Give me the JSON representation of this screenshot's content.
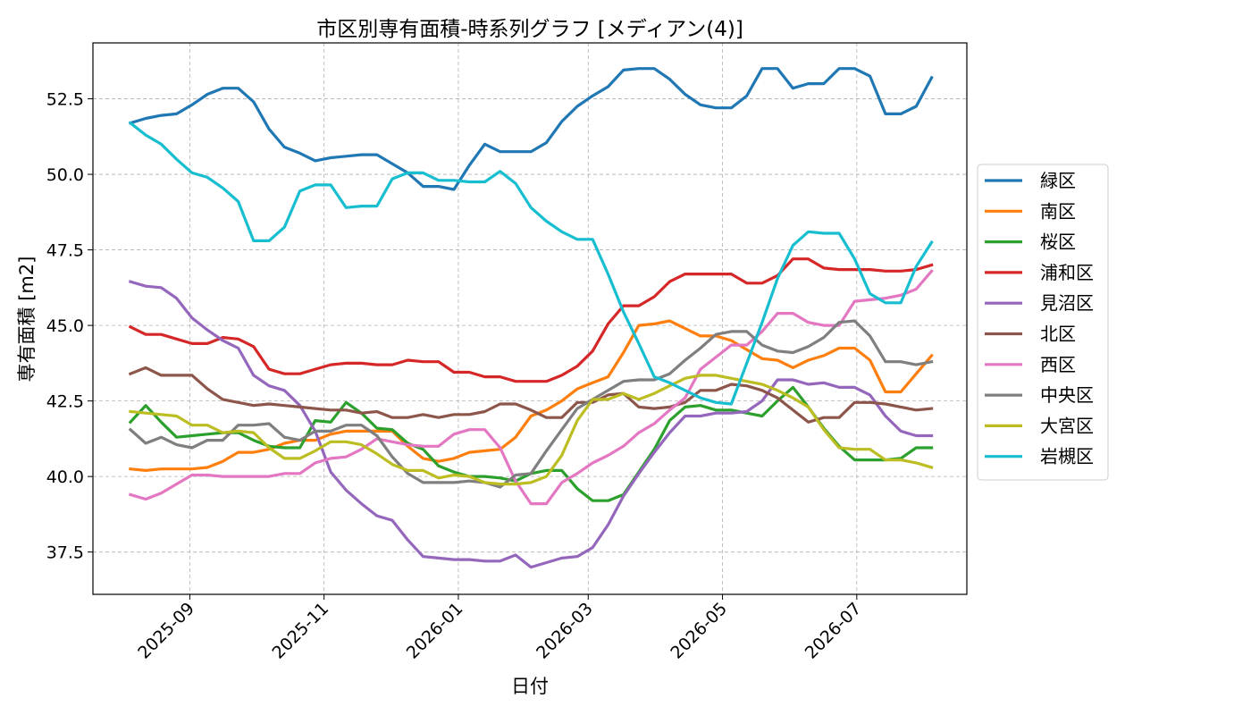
{
  "chart_data": {
    "type": "line",
    "title": "市区別専有面積-時系列グラフ [メディアン(4)]",
    "xlabel": "日付",
    "ylabel": "専有面積 [m2]",
    "xlim": [
      "2025-07-19",
      "2026-08-20"
    ],
    "ylim": [
      36.1,
      54.35
    ],
    "x_ticks": [
      "2025-09-01",
      "2025-11-01",
      "2026-01-01",
      "2026-03-01",
      "2026-05-01",
      "2026-07-01"
    ],
    "x_tick_labels": [
      "2025-09",
      "2025-11",
      "2026-01",
      "2026-03",
      "2026-05",
      "2026-07"
    ],
    "y_ticks": [
      37.5,
      40.0,
      42.5,
      45.0,
      47.5,
      50.0,
      52.5
    ],
    "y_tick_labels": [
      "37.5",
      "40.0",
      "42.5",
      "45.0",
      "47.5",
      "50.0",
      "52.5"
    ],
    "grid": true,
    "legend_position": "right-outside",
    "x": [
      "2025-08-05",
      "2025-08-12",
      "2025-08-19",
      "2025-08-26",
      "2025-09-02",
      "2025-09-09",
      "2025-09-16",
      "2025-09-23",
      "2025-09-30",
      "2025-10-07",
      "2025-10-14",
      "2025-10-21",
      "2025-10-28",
      "2025-11-04",
      "2025-11-11",
      "2025-11-18",
      "2025-11-25",
      "2025-12-02",
      "2025-12-09",
      "2025-12-16",
      "2025-12-23",
      "2025-12-30",
      "2026-01-06",
      "2026-01-13",
      "2026-01-20",
      "2026-01-27",
      "2026-02-03",
      "2026-02-10",
      "2026-02-17",
      "2026-02-24",
      "2026-03-03",
      "2026-03-10",
      "2026-03-17",
      "2026-03-24",
      "2026-03-31",
      "2026-04-07",
      "2026-04-14",
      "2026-04-21",
      "2026-04-28",
      "2026-05-05",
      "2026-05-12",
      "2026-05-19",
      "2026-05-26",
      "2026-06-02",
      "2026-06-09",
      "2026-06-16",
      "2026-06-23",
      "2026-06-30",
      "2026-07-07",
      "2026-07-14",
      "2026-07-21",
      "2026-07-28",
      "2026-08-04"
    ],
    "series": [
      {
        "name": "緑区",
        "color": "#1f77b4",
        "values": [
          51.7,
          51.85,
          51.95,
          52.0,
          52.3,
          52.65,
          52.85,
          52.85,
          52.4,
          51.5,
          50.9,
          50.7,
          50.45,
          50.55,
          50.6,
          50.65,
          50.65,
          50.35,
          50.05,
          49.6,
          49.6,
          49.5,
          50.3,
          51.0,
          50.75,
          50.75,
          50.75,
          51.05,
          51.75,
          52.25,
          52.6,
          52.9,
          53.45,
          53.5,
          53.5,
          53.15,
          52.65,
          52.3,
          52.2,
          52.2,
          52.6,
          53.5,
          53.5,
          52.85,
          53.0,
          53.0,
          53.5,
          53.5,
          53.25,
          52.0,
          52.0,
          52.25,
          53.2
        ]
      },
      {
        "name": "南区",
        "color": "#ff7f0e",
        "values": [
          40.25,
          40.2,
          40.25,
          40.25,
          40.25,
          40.3,
          40.5,
          40.8,
          40.8,
          40.9,
          41.1,
          41.2,
          41.2,
          41.4,
          41.5,
          41.5,
          41.5,
          41.5,
          41.0,
          40.6,
          40.5,
          40.6,
          40.8,
          40.85,
          40.9,
          41.3,
          42.0,
          42.2,
          42.5,
          42.9,
          43.1,
          43.3,
          44.1,
          45.0,
          45.05,
          45.15,
          44.9,
          44.65,
          44.65,
          44.5,
          44.2,
          43.9,
          43.85,
          43.6,
          43.85,
          44.0,
          44.25,
          44.25,
          43.85,
          42.8,
          42.8,
          43.4,
          44.0
        ]
      },
      {
        "name": "桜区",
        "color": "#2ca02c",
        "values": [
          41.8,
          42.35,
          41.8,
          41.3,
          41.35,
          41.4,
          41.45,
          41.45,
          41.2,
          41.0,
          40.95,
          40.95,
          41.85,
          41.8,
          42.45,
          42.1,
          41.6,
          41.55,
          41.1,
          40.9,
          40.35,
          40.15,
          40.0,
          40.0,
          39.95,
          39.85,
          40.1,
          40.2,
          40.2,
          39.6,
          39.2,
          39.2,
          39.4,
          40.15,
          40.9,
          41.85,
          42.3,
          42.35,
          42.2,
          42.2,
          42.1,
          42.0,
          42.5,
          42.95,
          42.3,
          41.6,
          41.0,
          40.55,
          40.55,
          40.55,
          40.6,
          40.95,
          40.95
        ]
      },
      {
        "name": "浦和区",
        "color": "#d62728",
        "values": [
          44.95,
          44.7,
          44.7,
          44.55,
          44.4,
          44.4,
          44.6,
          44.55,
          44.3,
          43.55,
          43.4,
          43.4,
          43.55,
          43.7,
          43.75,
          43.75,
          43.7,
          43.7,
          43.85,
          43.8,
          43.8,
          43.45,
          43.45,
          43.3,
          43.3,
          43.15,
          43.15,
          43.15,
          43.35,
          43.65,
          44.15,
          45.05,
          45.65,
          45.65,
          45.95,
          46.45,
          46.7,
          46.7,
          46.7,
          46.7,
          46.4,
          46.4,
          46.65,
          47.2,
          47.2,
          46.9,
          46.85,
          46.85,
          46.85,
          46.8,
          46.8,
          46.85,
          47.0
        ]
      },
      {
        "name": "見沼区",
        "color": "#9467bd",
        "values": [
          46.45,
          46.3,
          46.25,
          45.9,
          45.25,
          44.85,
          44.5,
          44.25,
          43.35,
          43.0,
          42.85,
          42.35,
          41.5,
          40.15,
          39.55,
          39.1,
          38.7,
          38.55,
          37.9,
          37.35,
          37.3,
          37.25,
          37.25,
          37.2,
          37.2,
          37.4,
          37.0,
          37.15,
          37.3,
          37.35,
          37.65,
          38.4,
          39.35,
          40.1,
          40.8,
          41.45,
          42.0,
          42.0,
          42.1,
          42.1,
          42.15,
          42.5,
          43.2,
          43.2,
          43.05,
          43.1,
          42.95,
          42.95,
          42.7,
          42.0,
          41.5,
          41.35,
          41.35
        ]
      },
      {
        "name": "北区",
        "color": "#8c564b",
        "values": [
          43.4,
          43.6,
          43.35,
          43.35,
          43.35,
          42.9,
          42.55,
          42.45,
          42.35,
          42.4,
          42.35,
          42.3,
          42.25,
          42.2,
          42.2,
          42.1,
          42.15,
          41.95,
          41.95,
          42.05,
          41.95,
          42.05,
          42.05,
          42.15,
          42.4,
          42.4,
          42.2,
          41.95,
          41.95,
          42.45,
          42.45,
          42.7,
          42.75,
          42.3,
          42.25,
          42.3,
          42.45,
          42.85,
          42.85,
          43.05,
          43.0,
          42.85,
          42.6,
          42.2,
          41.8,
          41.95,
          41.95,
          42.45,
          42.45,
          42.4,
          42.3,
          42.2,
          42.25
        ]
      },
      {
        "name": "西区",
        "color": "#e377c2",
        "values": [
          39.4,
          39.25,
          39.45,
          39.75,
          40.05,
          40.05,
          40.0,
          40.0,
          40.0,
          40.0,
          40.1,
          40.1,
          40.45,
          40.6,
          40.65,
          40.9,
          41.25,
          41.15,
          41.05,
          41.0,
          41.0,
          41.4,
          41.55,
          41.55,
          40.95,
          39.85,
          39.1,
          39.1,
          39.8,
          40.1,
          40.45,
          40.7,
          41.0,
          41.45,
          41.75,
          42.2,
          42.6,
          43.55,
          43.95,
          44.35,
          44.35,
          44.8,
          45.4,
          45.4,
          45.1,
          45.0,
          45.0,
          45.8,
          45.85,
          45.9,
          46.0,
          46.2,
          46.8
        ]
      },
      {
        "name": "中央区",
        "color": "#7f7f7f",
        "values": [
          41.55,
          41.1,
          41.3,
          41.05,
          40.95,
          41.2,
          41.2,
          41.7,
          41.7,
          41.75,
          41.3,
          41.2,
          41.5,
          41.5,
          41.7,
          41.7,
          41.35,
          40.65,
          40.1,
          39.8,
          39.8,
          39.8,
          39.85,
          39.8,
          39.65,
          40.05,
          40.1,
          40.85,
          41.55,
          42.25,
          42.55,
          42.85,
          43.15,
          43.2,
          43.2,
          43.4,
          43.85,
          44.25,
          44.7,
          44.8,
          44.8,
          44.35,
          44.15,
          44.1,
          44.3,
          44.6,
          45.1,
          45.15,
          44.65,
          43.8,
          43.8,
          43.7,
          43.8
        ]
      },
      {
        "name": "大宮区",
        "color": "#bcbd22",
        "values": [
          42.15,
          42.1,
          42.05,
          42.0,
          41.7,
          41.7,
          41.45,
          41.5,
          41.45,
          40.95,
          40.6,
          40.6,
          40.85,
          41.15,
          41.15,
          41.05,
          40.75,
          40.4,
          40.2,
          40.2,
          39.95,
          40.05,
          40.0,
          39.8,
          39.75,
          39.75,
          39.8,
          40.0,
          40.7,
          41.85,
          42.55,
          42.55,
          42.75,
          42.55,
          42.75,
          43.0,
          43.25,
          43.35,
          43.35,
          43.25,
          43.15,
          43.05,
          42.85,
          42.6,
          42.3,
          41.55,
          40.95,
          40.9,
          40.9,
          40.55,
          40.55,
          40.45,
          40.3
        ]
      },
      {
        "name": "岩槻区",
        "color": "#17becf",
        "values": [
          51.7,
          51.3,
          51.0,
          50.5,
          50.05,
          49.9,
          49.55,
          49.1,
          47.8,
          47.8,
          48.25,
          49.45,
          49.65,
          49.65,
          48.9,
          48.95,
          48.95,
          49.85,
          50.05,
          50.05,
          49.8,
          49.8,
          49.75,
          49.75,
          50.1,
          49.7,
          48.9,
          48.45,
          48.1,
          47.85,
          47.85,
          46.7,
          45.45,
          44.4,
          43.3,
          43.1,
          42.85,
          42.6,
          42.45,
          42.4,
          43.75,
          45.1,
          46.55,
          47.65,
          48.1,
          48.05,
          48.05,
          47.2,
          46.05,
          45.75,
          45.75,
          46.95,
          47.75
        ]
      }
    ]
  }
}
